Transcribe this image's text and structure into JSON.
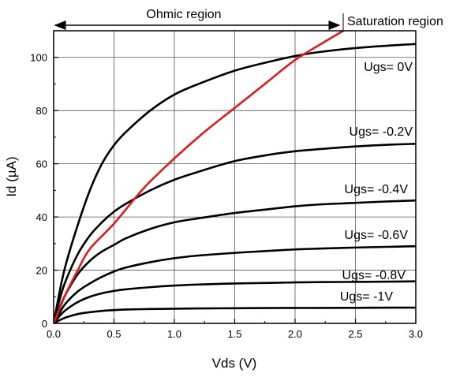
{
  "chart_data": {
    "type": "line",
    "xlabel": "Vds (V)",
    "ylabel": "Id (µA)",
    "xlim": [
      0,
      3.0
    ],
    "ylim": [
      0,
      110
    ],
    "xticks": [
      0.0,
      0.5,
      1.0,
      1.5,
      2.0,
      2.5,
      3.0
    ],
    "xtick_labels": [
      "0.0",
      "0.5",
      "1.0",
      "1.5",
      "2.0",
      "2.5",
      "3.0"
    ],
    "yticks": [
      0,
      20,
      40,
      60,
      80,
      100
    ],
    "ytick_labels": [
      "0",
      "20",
      "40",
      "60",
      "80",
      "100"
    ],
    "grid": true,
    "series": [
      {
        "name": "Ugs= 0V",
        "color": "#000000",
        "x": [
          0,
          0.05,
          0.1,
          0.2,
          0.3,
          0.4,
          0.5,
          0.6,
          0.8,
          1.0,
          1.2,
          1.5,
          1.8,
          2.0,
          2.2,
          2.5,
          2.8,
          3.0
        ],
        "y": [
          0,
          12,
          22,
          37,
          50,
          60,
          67,
          72,
          80,
          86,
          90,
          95,
          98.5,
          100.5,
          102,
          103.5,
          104.5,
          105
        ]
      },
      {
        "name": "Ugs= -0.2V",
        "color": "#000000",
        "x": [
          0,
          0.05,
          0.1,
          0.2,
          0.3,
          0.4,
          0.5,
          0.6,
          0.8,
          1.0,
          1.2,
          1.5,
          1.8,
          2.0,
          2.2,
          2.5,
          2.8,
          3.0
        ],
        "y": [
          0,
          9,
          16,
          26,
          33,
          38,
          42,
          45,
          50,
          54,
          57,
          61,
          63.5,
          64.7,
          65.5,
          66.5,
          67.2,
          67.5
        ]
      },
      {
        "name": "Ugs= -0.4V",
        "color": "#000000",
        "x": [
          0,
          0.05,
          0.1,
          0.2,
          0.3,
          0.4,
          0.5,
          0.6,
          0.8,
          1.0,
          1.2,
          1.5,
          1.8,
          2.0,
          2.2,
          2.5,
          2.8,
          3.0
        ],
        "y": [
          0,
          6,
          11,
          18.5,
          23.5,
          27,
          29.5,
          32,
          35.5,
          38,
          39.5,
          41.5,
          43,
          44,
          44.7,
          45.3,
          45.9,
          46.2
        ]
      },
      {
        "name": "Ugs= -0.6V",
        "color": "#000000",
        "x": [
          0,
          0.05,
          0.1,
          0.2,
          0.3,
          0.4,
          0.5,
          0.6,
          0.8,
          1.0,
          1.2,
          1.5,
          1.8,
          2.0,
          2.2,
          2.5,
          2.8,
          3.0
        ],
        "y": [
          0,
          4,
          7.5,
          12,
          15,
          17.5,
          19.5,
          21,
          23,
          24.5,
          25.5,
          26.5,
          27.3,
          27.8,
          28.1,
          28.5,
          28.8,
          29
        ]
      },
      {
        "name": "Ugs= -0.8V",
        "color": "#000000",
        "x": [
          0,
          0.05,
          0.1,
          0.2,
          0.3,
          0.4,
          0.5,
          0.6,
          0.8,
          1.0,
          1.2,
          1.5,
          1.8,
          2.0,
          2.2,
          2.5,
          2.8,
          3.0
        ],
        "y": [
          0,
          2.8,
          5,
          8,
          10,
          11.3,
          12.2,
          12.8,
          13.6,
          14.2,
          14.6,
          15,
          15.2,
          15.4,
          15.5,
          15.6,
          15.7,
          15.8
        ]
      },
      {
        "name": "Ugs= -1V",
        "color": "#000000",
        "x": [
          0,
          0.05,
          0.1,
          0.2,
          0.3,
          0.4,
          0.5,
          0.6,
          0.8,
          1.0,
          1.2,
          1.5,
          1.8,
          2.0,
          2.2,
          2.5,
          2.8,
          3.0
        ],
        "y": [
          0,
          1.2,
          2.2,
          3.5,
          4.2,
          4.7,
          5,
          5.2,
          5.4,
          5.5,
          5.6,
          5.7,
          5.75,
          5.8,
          5.8,
          5.85,
          5.9,
          5.9
        ]
      },
      {
        "name": "",
        "color": "#e31a1c",
        "x": [
          0,
          0.1,
          0.2,
          0.3,
          0.5,
          0.75,
          1.0,
          1.25,
          1.5,
          1.75,
          2.0,
          2.25,
          2.4
        ],
        "y": [
          0,
          11,
          20,
          28,
          37.5,
          51,
          62,
          72,
          81,
          90,
          99,
          106,
          110
        ]
      }
    ],
    "annotations": [
      {
        "text": "Ohmic region",
        "x_from": 0,
        "x_to": 2.4
      },
      {
        "text": "Saturation region",
        "x_from": 2.4
      }
    ]
  }
}
